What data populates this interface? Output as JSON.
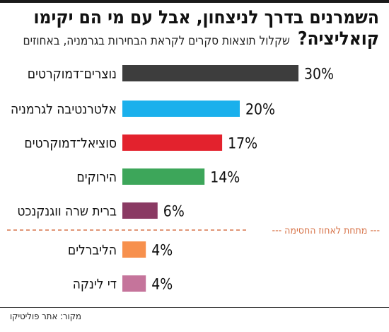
{
  "header": {
    "title_line1": "השמרנים בדרך לניצחון, אבל עם מי הם יקימו",
    "title_line2": "קואליציה?",
    "subtitle": "שקלול תוצאות סקרים לקראת הבחירות בגרמניה, באחוזים"
  },
  "threshold_label": "--- מתחת לאחוז החסימה ---",
  "source": "מקור: אתר פוליטיקו",
  "chart_data": {
    "type": "bar",
    "orientation": "horizontal",
    "unit": "%",
    "categories": [
      "נוצרים־דמוקרטים",
      "אלטרנטיבה לגרמניה",
      "סוציאל־דמוקרטים",
      "הירוקים",
      "ברית שרה ווגנקנכט",
      "הליברלים",
      "די לינקה"
    ],
    "values": [
      30,
      20,
      17,
      14,
      6,
      4,
      4
    ],
    "value_labels": [
      "30%",
      "20%",
      "17%",
      "14%",
      "6%",
      "4%",
      "4%"
    ],
    "colors": [
      "#3d3d3d",
      "#1ab0ec",
      "#e3222d",
      "#3da65a",
      "#8a3a63",
      "#f7904d",
      "#c5749b"
    ],
    "threshold_after_index": 4,
    "title": "השמרנים בדרך לניצחון, אבל עם מי הם יקימו קואליציה?"
  }
}
